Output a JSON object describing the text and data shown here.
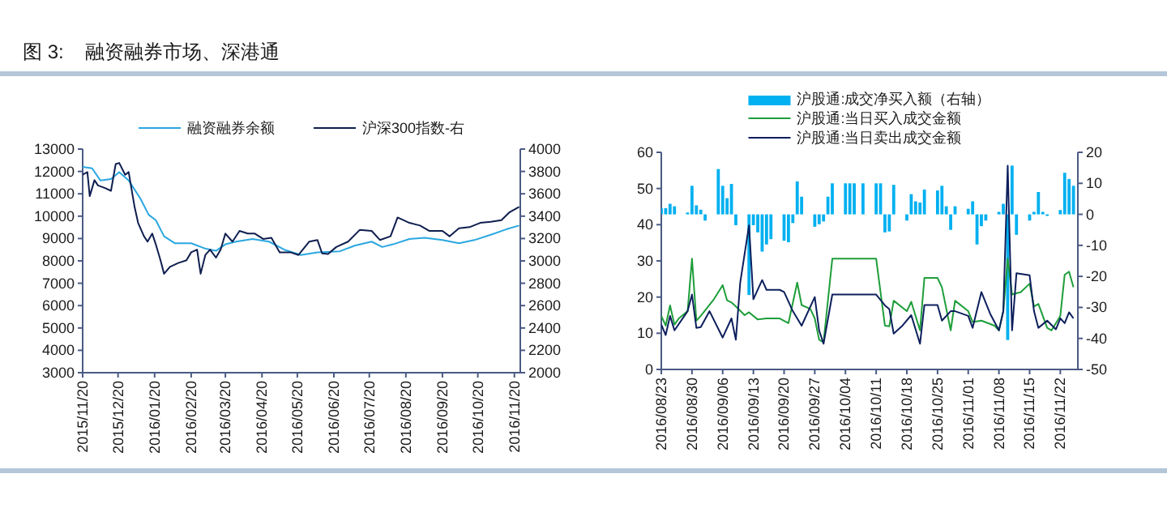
{
  "chart_data": [
    {
      "type": "line",
      "title": "图 3:    融资融券市场、深港通",
      "legend": "top",
      "xlim": [
        "2015-11-20",
        "2016-11-25"
      ],
      "xticks": [
        {
          "value": "2015-11-20",
          "label": "2015/11/20"
        },
        {
          "value": "2015-12-20",
          "label": "2015/12/20"
        },
        {
          "value": "2016-01-20",
          "label": "2016/01/20"
        },
        {
          "value": "2016-02-20",
          "label": "2016/02/20"
        },
        {
          "value": "2016-03-20",
          "label": "2016/03/20"
        },
        {
          "value": "2016-04-20",
          "label": "2016/04/20"
        },
        {
          "value": "2016-05-20",
          "label": "2016/05/20"
        },
        {
          "value": "2016-06-20",
          "label": "2016/06/20"
        },
        {
          "value": "2016-07-20",
          "label": "2016/07/20"
        },
        {
          "value": "2016-08-20",
          "label": "2016/08/20"
        },
        {
          "value": "2016-09-20",
          "label": "2016/09/20"
        },
        {
          "value": "2016-10-20",
          "label": "2016/10/20"
        },
        {
          "value": "2016-11-20",
          "label": "2016/11/20"
        }
      ],
      "ylim": [
        3000,
        13000
      ],
      "yticks": [
        3000,
        4000,
        5000,
        6000,
        7000,
        8000,
        9000,
        10000,
        11000,
        12000,
        13000
      ],
      "y2lim": [
        2000,
        4000
      ],
      "y2ticks": [
        2000,
        2200,
        2400,
        2600,
        2800,
        3000,
        3200,
        3400,
        3600,
        3800,
        4000
      ],
      "series": [
        {
          "name": "融资融券余额",
          "color": "#2aa7e0",
          "x": [
            "2015-11-20",
            "2015-11-28",
            "2015-12-05",
            "2015-12-14",
            "2015-12-21",
            "2015-12-29",
            "2016-01-08",
            "2016-01-15",
            "2016-01-21",
            "2016-01-28",
            "2016-02-06",
            "2016-02-20",
            "2016-03-03",
            "2016-03-12",
            "2016-03-20",
            "2016-03-29",
            "2016-04-12",
            "2016-04-26",
            "2016-05-09",
            "2016-05-23",
            "2016-06-06",
            "2016-06-25",
            "2016-07-08",
            "2016-07-22",
            "2016-07-31",
            "2016-08-09",
            "2016-08-23",
            "2016-09-05",
            "2016-09-20",
            "2016-10-04",
            "2016-10-17",
            "2016-10-31",
            "2016-11-13",
            "2016-11-24"
          ],
          "values": [
            12200,
            12140,
            11600,
            11660,
            11970,
            11600,
            10780,
            10060,
            9820,
            9100,
            8790,
            8790,
            8550,
            8450,
            8740,
            8860,
            8980,
            8860,
            8500,
            8260,
            8380,
            8430,
            8690,
            8860,
            8620,
            8740,
            8980,
            9030,
            8930,
            8790,
            8930,
            9170,
            9410,
            9580
          ]
        },
        {
          "name": "沪深300指数-右",
          "color": "#0f1e4f",
          "axis": "y2",
          "x": [
            "2015-11-20",
            "2015-11-24",
            "2015-11-26",
            "2015-11-30",
            "2015-12-03",
            "2015-12-09",
            "2015-12-14",
            "2015-12-18",
            "2015-12-21",
            "2015-12-26",
            "2015-12-29",
            "2016-01-03",
            "2016-01-06",
            "2016-01-11",
            "2016-01-14",
            "2016-01-18",
            "2016-01-21",
            "2016-01-25",
            "2016-01-28",
            "2016-02-02",
            "2016-02-09",
            "2016-02-16",
            "2016-02-20",
            "2016-02-25",
            "2016-02-28",
            "2016-03-03",
            "2016-03-07",
            "2016-03-12",
            "2016-03-16",
            "2016-03-20",
            "2016-03-26",
            "2016-04-01",
            "2016-04-08",
            "2016-04-14",
            "2016-04-21",
            "2016-04-28",
            "2016-05-05",
            "2016-05-14",
            "2016-05-21",
            "2016-05-30",
            "2016-06-06",
            "2016-06-10",
            "2016-06-15",
            "2016-06-22",
            "2016-07-02",
            "2016-07-12",
            "2016-07-22",
            "2016-07-29",
            "2016-08-07",
            "2016-08-13",
            "2016-08-23",
            "2016-09-01",
            "2016-09-09",
            "2016-09-20",
            "2016-09-26",
            "2016-10-04",
            "2016-10-13",
            "2016-10-22",
            "2016-10-31",
            "2016-11-09",
            "2016-11-16",
            "2016-11-24"
          ],
          "values": [
            3770,
            3794,
            3579,
            3722,
            3675,
            3651,
            3627,
            3866,
            3876,
            3770,
            3794,
            3483,
            3340,
            3220,
            3172,
            3244,
            3148,
            3005,
            2885,
            2947,
            2981,
            3005,
            3077,
            3101,
            2885,
            3053,
            3101,
            3029,
            3101,
            3244,
            3172,
            3268,
            3244,
            3244,
            3196,
            3206,
            3077,
            3077,
            3053,
            3172,
            3187,
            3067,
            3062,
            3124,
            3172,
            3278,
            3268,
            3187,
            3220,
            3388,
            3340,
            3316,
            3268,
            3268,
            3220,
            3292,
            3302,
            3340,
            3350,
            3364,
            3436,
            3483
          ]
        }
      ]
    },
    {
      "type": "line",
      "legend": "top",
      "xlim": [
        "2016-08-23",
        "2016-11-26"
      ],
      "xticks": [
        {
          "value": "2016-08-23",
          "label": "2016/08/23"
        },
        {
          "value": "2016-08-30",
          "label": "2016/08/30"
        },
        {
          "value": "2016-09-06",
          "label": "2016/09/06"
        },
        {
          "value": "2016-09-13",
          "label": "2016/09/13"
        },
        {
          "value": "2016-09-20",
          "label": "2016/09/20"
        },
        {
          "value": "2016-09-27",
          "label": "2016/09/27"
        },
        {
          "value": "2016-10-04",
          "label": "2016/10/04"
        },
        {
          "value": "2016-10-11",
          "label": "2016/10/11"
        },
        {
          "value": "2016-10-18",
          "label": "2016/10/18"
        },
        {
          "value": "2016-10-25",
          "label": "2016/10/25"
        },
        {
          "value": "2016-11-01",
          "label": "2016/11/01"
        },
        {
          "value": "2016-11-08",
          "label": "2016/11/08"
        },
        {
          "value": "2016-11-15",
          "label": "2016/11/15"
        },
        {
          "value": "2016-11-22",
          "label": "2016/11/22"
        }
      ],
      "ylim": [
        0,
        60
      ],
      "yticks": [
        0,
        10,
        20,
        30,
        40,
        50,
        60
      ],
      "y2lim": [
        -50,
        20
      ],
      "y2ticks": [
        -50,
        -40,
        -30,
        -20,
        -10,
        0,
        10,
        20
      ],
      "series": [
        {
          "name": "沪股通:成交净买入额（右轴）",
          "type": "bar",
          "axis": "y2",
          "color": "#00b0f0",
          "x": [
            "2016-08-23",
            "2016-08-24",
            "2016-08-25",
            "2016-08-26",
            "2016-08-29",
            "2016-08-30",
            "2016-08-31",
            "2016-09-01",
            "2016-09-02",
            "2016-09-05",
            "2016-09-06",
            "2016-09-07",
            "2016-09-08",
            "2016-09-09",
            "2016-09-12",
            "2016-09-13",
            "2016-09-14",
            "2016-09-15",
            "2016-09-16",
            "2016-09-17",
            "2016-09-20",
            "2016-09-21",
            "2016-09-22",
            "2016-09-23",
            "2016-09-24",
            "2016-09-27",
            "2016-09-28",
            "2016-09-29",
            "2016-09-30",
            "2016-10-01",
            "2016-10-04",
            "2016-10-05",
            "2016-10-06",
            "2016-10-08",
            "2016-10-11",
            "2016-10-12",
            "2016-10-13",
            "2016-10-14",
            "2016-10-15",
            "2016-10-18",
            "2016-10-19",
            "2016-10-20",
            "2016-10-21",
            "2016-10-22",
            "2016-10-25",
            "2016-10-26",
            "2016-10-27",
            "2016-10-28",
            "2016-10-29",
            "2016-11-01",
            "2016-11-02",
            "2016-11-03",
            "2016-11-04",
            "2016-11-05",
            "2016-11-08",
            "2016-11-09",
            "2016-11-10",
            "2016-11-11",
            "2016-11-12",
            "2016-11-15",
            "2016-11-16",
            "2016-11-17",
            "2016-11-18",
            "2016-11-19",
            "2016-11-22",
            "2016-11-23",
            "2016-11-24",
            "2016-11-25"
          ],
          "values": [
            2,
            2,
            3.4,
            2.6,
            0.6,
            9.2,
            2.9,
            1.5,
            -2,
            14.6,
            9.2,
            5.2,
            9.8,
            -3.5,
            -26,
            -3.5,
            -5.8,
            -12,
            -9.7,
            -8,
            -8.5,
            -9,
            -2.8,
            10.6,
            5.7,
            -4,
            -3.2,
            -2.3,
            5.7,
            10,
            10,
            10,
            10,
            10,
            10,
            10,
            -5.8,
            -5.5,
            9.5,
            -2,
            6.5,
            4.2,
            3.8,
            8,
            7.7,
            9.2,
            2.6,
            -5,
            2.6,
            1.8,
            4.2,
            -9.7,
            -3.8,
            -2,
            0.8,
            3.4,
            -40.5,
            15.7,
            -6.6,
            -2,
            0.8,
            7.2,
            0.8,
            -0.5,
            1.4,
            13.4,
            11.4,
            9.2
          ]
        },
        {
          "name": "沪股通:当日买入成交金额",
          "color": "#1e9e3a",
          "x": [
            "2016-08-23",
            "2016-08-24",
            "2016-08-25",
            "2016-08-26",
            "2016-08-27",
            "2016-08-29",
            "2016-08-30",
            "2016-08-31",
            "2016-09-01",
            "2016-09-04",
            "2016-09-06",
            "2016-09-07",
            "2016-09-08",
            "2016-09-09",
            "2016-09-11",
            "2016-09-12",
            "2016-09-14",
            "2016-09-16",
            "2016-09-19",
            "2016-09-21",
            "2016-09-23",
            "2016-09-24",
            "2016-09-26",
            "2016-09-27",
            "2016-09-28",
            "2016-09-29",
            "2016-10-01",
            "2016-10-11",
            "2016-10-13",
            "2016-10-14",
            "2016-10-15",
            "2016-10-18",
            "2016-10-19",
            "2016-10-21",
            "2016-10-22",
            "2016-10-25",
            "2016-10-26",
            "2016-10-28",
            "2016-10-29",
            "2016-11-01",
            "2016-11-02",
            "2016-11-04",
            "2016-11-07",
            "2016-11-08",
            "2016-11-09",
            "2016-11-10",
            "2016-11-11",
            "2016-11-13",
            "2016-11-15",
            "2016-11-16",
            "2016-11-17",
            "2016-11-19",
            "2016-11-20",
            "2016-11-22",
            "2016-11-23",
            "2016-11-24",
            "2016-11-25"
          ],
          "values": [
            14.8,
            12.1,
            17.7,
            12.4,
            14.1,
            16.1,
            30.6,
            13.5,
            14.8,
            19.4,
            23.3,
            19.1,
            18.5,
            17.4,
            15,
            15.8,
            13.8,
            14.1,
            14.1,
            12.8,
            24,
            17.8,
            16.7,
            14.1,
            8.2,
            7.5,
            30.6,
            30.6,
            12.1,
            11.9,
            19,
            16.1,
            18.7,
            10.8,
            25.3,
            25.3,
            22.7,
            10.8,
            19,
            16.1,
            13.1,
            13.5,
            12.1,
            10.8,
            16.1,
            30.6,
            20.7,
            21.4,
            23.7,
            17.4,
            18.1,
            11.5,
            10.8,
            14.8,
            26.2,
            27,
            22.7
          ]
        },
        {
          "name": "沪股通:当日卖出成交金额",
          "color": "#0d1f5c",
          "x": [
            "2016-08-23",
            "2016-08-24",
            "2016-08-25",
            "2016-08-26",
            "2016-08-29",
            "2016-08-30",
            "2016-08-31",
            "2016-09-01",
            "2016-09-03",
            "2016-09-06",
            "2016-09-08",
            "2016-09-09",
            "2016-09-10",
            "2016-09-12",
            "2016-09-13",
            "2016-09-15",
            "2016-09-16",
            "2016-09-19",
            "2016-09-20",
            "2016-09-22",
            "2016-09-24",
            "2016-09-27",
            "2016-09-28",
            "2016-09-29",
            "2016-10-01",
            "2016-10-11",
            "2016-10-13",
            "2016-10-14",
            "2016-10-15",
            "2016-10-17",
            "2016-10-19",
            "2016-10-21",
            "2016-10-22",
            "2016-10-25",
            "2016-10-26",
            "2016-10-28",
            "2016-10-29",
            "2016-11-01",
            "2016-11-02",
            "2016-11-04",
            "2016-11-06",
            "2016-11-08",
            "2016-11-09",
            "2016-11-10",
            "2016-11-11",
            "2016-11-12",
            "2016-11-15",
            "2016-11-16",
            "2016-11-17",
            "2016-11-19",
            "2016-11-21",
            "2016-11-22",
            "2016-11-23",
            "2016-11-24",
            "2016-11-25"
          ],
          "values": [
            12.4,
            9.5,
            14.8,
            10.8,
            16.1,
            20.7,
            11.5,
            11.7,
            16.1,
            8.8,
            14.1,
            8.2,
            24,
            39.8,
            19.4,
            24.7,
            22,
            22,
            21.4,
            16.1,
            12.1,
            20,
            10.8,
            7.1,
            20.7,
            20.7,
            17.7,
            16.7,
            9.9,
            12.1,
            15,
            7.1,
            17.8,
            17.8,
            13.5,
            16.1,
            16.1,
            14.8,
            11.5,
            21.4,
            15.4,
            10.8,
            16.1,
            56.3,
            10.8,
            26.6,
            26,
            16.1,
            11.5,
            13.5,
            11.1,
            14.1,
            12.8,
            15.8,
            14.1
          ]
        }
      ]
    }
  ]
}
